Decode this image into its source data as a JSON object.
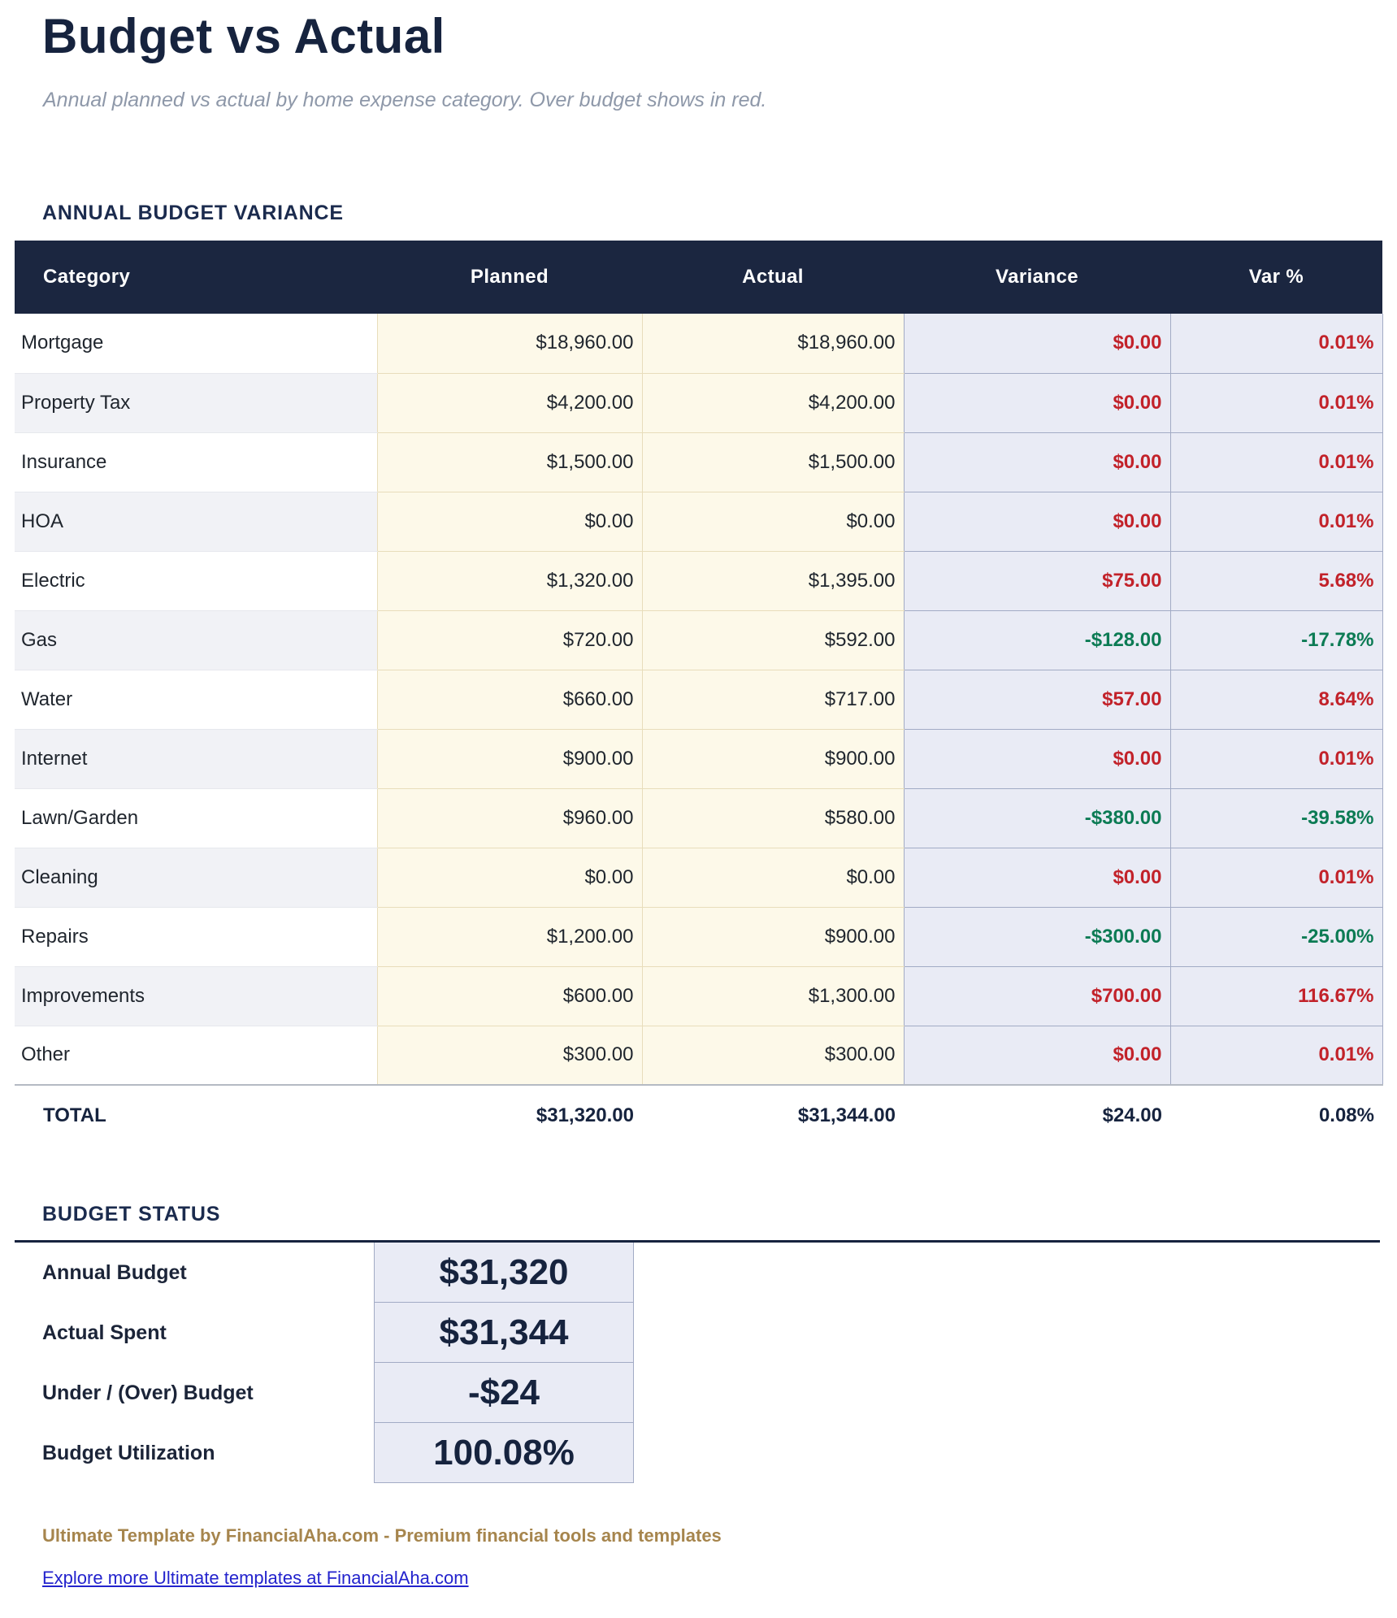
{
  "page": {
    "title": "Budget vs Actual",
    "subtitle": "Annual planned vs actual by home expense category. Over budget shows in red."
  },
  "variance_section": {
    "heading": "ANNUAL BUDGET VARIANCE",
    "columns": [
      "Category",
      "Planned",
      "Actual",
      "Variance",
      "Var %"
    ],
    "rows": [
      {
        "category": "Mortgage",
        "planned": "$18,960.00",
        "actual": "$18,960.00",
        "variance": "$0.00",
        "var_pct": "0.01%",
        "direction": "over"
      },
      {
        "category": "Property Tax",
        "planned": "$4,200.00",
        "actual": "$4,200.00",
        "variance": "$0.00",
        "var_pct": "0.01%",
        "direction": "over"
      },
      {
        "category": "Insurance",
        "planned": "$1,500.00",
        "actual": "$1,500.00",
        "variance": "$0.00",
        "var_pct": "0.01%",
        "direction": "over"
      },
      {
        "category": "HOA",
        "planned": "$0.00",
        "actual": "$0.00",
        "variance": "$0.00",
        "var_pct": "0.01%",
        "direction": "over"
      },
      {
        "category": "Electric",
        "planned": "$1,320.00",
        "actual": "$1,395.00",
        "variance": "$75.00",
        "var_pct": "5.68%",
        "direction": "over"
      },
      {
        "category": "Gas",
        "planned": "$720.00",
        "actual": "$592.00",
        "variance": "-$128.00",
        "var_pct": "-17.78%",
        "direction": "under"
      },
      {
        "category": "Water",
        "planned": "$660.00",
        "actual": "$717.00",
        "variance": "$57.00",
        "var_pct": "8.64%",
        "direction": "over"
      },
      {
        "category": "Internet",
        "planned": "$900.00",
        "actual": "$900.00",
        "variance": "$0.00",
        "var_pct": "0.01%",
        "direction": "over"
      },
      {
        "category": "Lawn/Garden",
        "planned": "$960.00",
        "actual": "$580.00",
        "variance": "-$380.00",
        "var_pct": "-39.58%",
        "direction": "under"
      },
      {
        "category": "Cleaning",
        "planned": "$0.00",
        "actual": "$0.00",
        "variance": "$0.00",
        "var_pct": "0.01%",
        "direction": "over"
      },
      {
        "category": "Repairs",
        "planned": "$1,200.00",
        "actual": "$900.00",
        "variance": "-$300.00",
        "var_pct": "-25.00%",
        "direction": "under"
      },
      {
        "category": "Improvements",
        "planned": "$600.00",
        "actual": "$1,300.00",
        "variance": "$700.00",
        "var_pct": "116.67%",
        "direction": "over"
      },
      {
        "category": "Other",
        "planned": "$300.00",
        "actual": "$300.00",
        "variance": "$0.00",
        "var_pct": "0.01%",
        "direction": "over"
      }
    ],
    "total": {
      "label": "TOTAL",
      "planned": "$31,320.00",
      "actual": "$31,344.00",
      "variance": "$24.00",
      "var_pct": "0.08%"
    }
  },
  "status_section": {
    "heading": "BUDGET STATUS",
    "rows": [
      {
        "label": "Annual Budget",
        "value": "$31,320"
      },
      {
        "label": "Actual Spent",
        "value": "$31,344"
      },
      {
        "label": "Under / (Over) Budget",
        "value": "-$24"
      },
      {
        "label": "Budget Utilization",
        "value": "100.08%"
      }
    ]
  },
  "footer": {
    "tagline": "Ultimate Template by FinancialAha.com - Premium financial tools and templates",
    "link": "Explore more Ultimate templates at FinancialAha.com"
  },
  "colors": {
    "header_navy": "#1b2640",
    "accent_navy": "#16233e",
    "heading_navy": "#1b2b4e",
    "over_red": "#c2222a",
    "under_green": "#0c7b54",
    "planned_bg": "#fdf9e9",
    "variance_bg": "#e9ebf5",
    "stripe_gray": "#f1f2f6",
    "subtitle_gray": "#8e98a9",
    "tagline_gold": "#a6854d",
    "link_blue": "#2323cd"
  }
}
